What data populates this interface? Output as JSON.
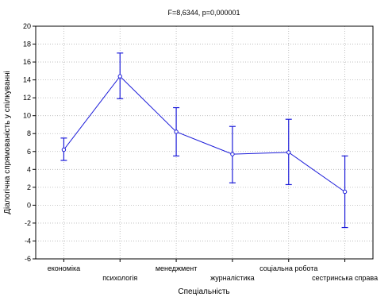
{
  "chart_data": {
    "type": "line",
    "title": "F=8,6344, p=0,000001",
    "xlabel": "Спеціальність",
    "ylabel": "Діалогічна спрямованість у спілкуванні",
    "ylim": [
      -6,
      20
    ],
    "yticks": [
      "20",
      "18",
      "16",
      "14",
      "12",
      "10",
      "8",
      "6",
      "4",
      "2",
      "0",
      "-2",
      "-4",
      "-6"
    ],
    "categories": [
      "економіка",
      "психологія",
      "менеджмент",
      "журналістика",
      "соціальна робота",
      "сестринська справа"
    ],
    "series": [
      {
        "values": [
          6.2,
          14.4,
          8.2,
          5.7,
          5.9,
          1.5
        ],
        "error_low": [
          5.0,
          11.9,
          5.5,
          2.5,
          2.3,
          -2.5
        ],
        "error_high": [
          7.5,
          17.0,
          10.9,
          8.8,
          9.6,
          5.5
        ]
      }
    ],
    "grid": true,
    "colors": {
      "series": "#1c1cd9",
      "grid": "#b4b4b4",
      "axis": "#000000"
    }
  }
}
